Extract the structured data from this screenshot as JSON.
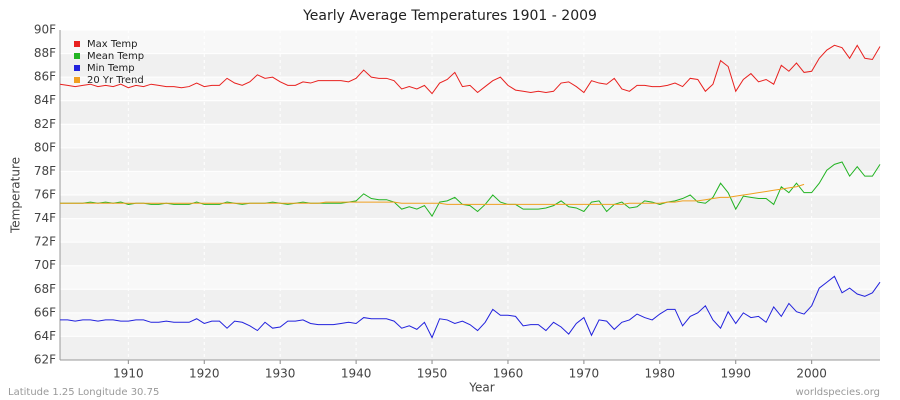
{
  "chart_data": {
    "type": "line",
    "title": "Yearly Average Temperatures 1901 - 2009",
    "x_label": "Year",
    "y_label": "Temperature",
    "footer_left": "Latitude 1.25 Longitude 30.75",
    "footer_right": "worldspecies.org",
    "legend": "top-left",
    "grid": true,
    "xlim": [
      1901,
      2009
    ],
    "xticks": [
      1910,
      1920,
      1930,
      1940,
      1950,
      1960,
      1970,
      1980,
      1990,
      2000
    ],
    "ylim": [
      62,
      90
    ],
    "yticks": [
      {
        "value": 62,
        "label": "62F"
      },
      {
        "value": 64,
        "label": "64F"
      },
      {
        "value": 66,
        "label": "66F"
      },
      {
        "value": 68,
        "label": "68F"
      },
      {
        "value": 70,
        "label": "70F"
      },
      {
        "value": 72,
        "label": "72F"
      },
      {
        "value": 74,
        "label": "74F"
      },
      {
        "value": 76,
        "label": "76F"
      },
      {
        "value": 78,
        "label": "78F"
      },
      {
        "value": 80,
        "label": "80F"
      },
      {
        "value": 82,
        "label": "82F"
      },
      {
        "value": 84,
        "label": "84F"
      },
      {
        "value": 86,
        "label": "86F"
      },
      {
        "value": 88,
        "label": "88F"
      },
      {
        "value": 90,
        "label": "90F"
      }
    ],
    "x": [
      1901,
      1902,
      1903,
      1904,
      1905,
      1906,
      1907,
      1908,
      1909,
      1910,
      1911,
      1912,
      1913,
      1914,
      1915,
      1916,
      1917,
      1918,
      1919,
      1920,
      1921,
      1922,
      1923,
      1924,
      1925,
      1926,
      1927,
      1928,
      1929,
      1930,
      1931,
      1932,
      1933,
      1934,
      1935,
      1936,
      1937,
      1938,
      1939,
      1940,
      1941,
      1942,
      1943,
      1944,
      1945,
      1946,
      1947,
      1948,
      1949,
      1950,
      1951,
      1952,
      1953,
      1954,
      1955,
      1956,
      1957,
      1958,
      1959,
      1960,
      1961,
      1962,
      1963,
      1964,
      1965,
      1966,
      1967,
      1968,
      1969,
      1970,
      1971,
      1972,
      1973,
      1974,
      1975,
      1976,
      1977,
      1978,
      1979,
      1980,
      1981,
      1982,
      1983,
      1984,
      1985,
      1986,
      1987,
      1988,
      1989,
      1990,
      1991,
      1992,
      1993,
      1994,
      1995,
      1996,
      1997,
      1998,
      1999,
      2000,
      2001,
      2002,
      2003,
      2004,
      2005,
      2006,
      2007,
      2008,
      2009
    ],
    "series": [
      {
        "name": "Max Temp",
        "color": "#e8211f",
        "values": [
          85.4,
          85.3,
          85.2,
          85.3,
          85.4,
          85.2,
          85.3,
          85.2,
          85.4,
          85.1,
          85.3,
          85.2,
          85.4,
          85.3,
          85.2,
          85.2,
          85.1,
          85.2,
          85.5,
          85.2,
          85.3,
          85.3,
          85.9,
          85.5,
          85.3,
          85.6,
          86.2,
          85.9,
          86.0,
          85.6,
          85.3,
          85.3,
          85.6,
          85.5,
          85.7,
          85.7,
          85.7,
          85.7,
          85.6,
          85.9,
          86.6,
          86.0,
          85.9,
          85.9,
          85.7,
          85.0,
          85.2,
          85.0,
          85.3,
          84.6,
          85.5,
          85.8,
          86.4,
          85.2,
          85.3,
          84.7,
          85.2,
          85.7,
          86.0,
          85.3,
          84.9,
          84.8,
          84.7,
          84.8,
          84.7,
          84.8,
          85.5,
          85.6,
          85.2,
          84.7,
          85.7,
          85.5,
          85.4,
          85.9,
          85.0,
          84.8,
          85.3,
          85.3,
          85.2,
          85.2,
          85.3,
          85.5,
          85.2,
          85.9,
          85.8,
          84.8,
          85.4,
          87.4,
          86.9,
          84.8,
          85.8,
          86.3,
          85.6,
          85.8,
          85.4,
          87.0,
          86.5,
          87.2,
          86.4,
          86.5,
          87.6,
          88.3,
          88.7,
          88.5,
          87.6,
          88.7,
          87.6,
          87.5,
          88.6
        ]
      },
      {
        "name": "Mean Temp",
        "color": "#22b322",
        "values": [
          75.3,
          75.3,
          75.3,
          75.3,
          75.4,
          75.3,
          75.4,
          75.3,
          75.4,
          75.2,
          75.3,
          75.3,
          75.2,
          75.2,
          75.3,
          75.2,
          75.2,
          75.2,
          75.4,
          75.2,
          75.2,
          75.2,
          75.4,
          75.3,
          75.2,
          75.3,
          75.3,
          75.3,
          75.4,
          75.3,
          75.2,
          75.3,
          75.4,
          75.3,
          75.3,
          75.3,
          75.3,
          75.3,
          75.4,
          75.5,
          76.1,
          75.7,
          75.6,
          75.6,
          75.4,
          74.8,
          75.0,
          74.8,
          75.1,
          74.2,
          75.4,
          75.5,
          75.8,
          75.2,
          75.1,
          74.6,
          75.2,
          76.0,
          75.4,
          75.2,
          75.2,
          74.8,
          74.8,
          74.8,
          74.9,
          75.1,
          75.5,
          75.0,
          74.9,
          74.6,
          75.4,
          75.5,
          74.6,
          75.2,
          75.4,
          74.9,
          75.0,
          75.5,
          75.4,
          75.2,
          75.4,
          75.5,
          75.7,
          76.0,
          75.4,
          75.3,
          75.8,
          77.0,
          76.2,
          74.8,
          75.9,
          75.8,
          75.7,
          75.7,
          75.2,
          76.7,
          76.2,
          77.0,
          76.2,
          76.2,
          77.0,
          78.1,
          78.6,
          78.8,
          77.6,
          78.4,
          77.6,
          77.6,
          78.6
        ]
      },
      {
        "name": "Min Temp",
        "color": "#2222dd",
        "values": [
          65.4,
          65.4,
          65.3,
          65.4,
          65.4,
          65.3,
          65.4,
          65.4,
          65.3,
          65.3,
          65.4,
          65.4,
          65.2,
          65.2,
          65.3,
          65.2,
          65.2,
          65.2,
          65.5,
          65.1,
          65.3,
          65.3,
          64.7,
          65.3,
          65.2,
          64.9,
          64.5,
          65.2,
          64.7,
          64.8,
          65.3,
          65.3,
          65.4,
          65.1,
          65.0,
          65.0,
          65.0,
          65.1,
          65.2,
          65.1,
          65.6,
          65.5,
          65.5,
          65.5,
          65.3,
          64.7,
          64.9,
          64.6,
          65.2,
          63.9,
          65.5,
          65.4,
          65.1,
          65.3,
          65.0,
          64.5,
          65.2,
          66.3,
          65.8,
          65.8,
          65.7,
          64.9,
          65.0,
          65.0,
          64.5,
          65.2,
          64.8,
          64.2,
          65.1,
          65.6,
          64.1,
          65.4,
          65.3,
          64.6,
          65.2,
          65.4,
          65.9,
          65.6,
          65.4,
          65.9,
          66.3,
          66.3,
          64.9,
          65.7,
          66.0,
          66.6,
          65.4,
          64.7,
          66.1,
          65.1,
          66.0,
          65.6,
          65.7,
          65.2,
          66.5,
          65.7,
          66.8,
          66.1,
          65.9,
          66.6,
          68.1,
          68.6,
          69.1,
          67.7,
          68.1,
          67.6,
          67.4,
          67.7,
          68.6
        ]
      },
      {
        "name": "20 Yr Trend",
        "color": "#f0a020",
        "values": [
          75.3,
          75.3,
          75.3,
          75.3,
          75.3,
          75.3,
          75.3,
          75.3,
          75.3,
          75.3,
          75.3,
          75.3,
          75.3,
          75.3,
          75.3,
          75.3,
          75.3,
          75.3,
          75.3,
          75.3,
          75.3,
          75.3,
          75.3,
          75.3,
          75.3,
          75.3,
          75.3,
          75.3,
          75.3,
          75.3,
          75.3,
          75.3,
          75.3,
          75.3,
          75.3,
          75.4,
          75.4,
          75.4,
          75.4,
          75.4,
          75.4,
          75.4,
          75.4,
          75.4,
          75.4,
          75.3,
          75.3,
          75.3,
          75.3,
          75.3,
          75.3,
          75.2,
          75.2,
          75.2,
          75.2,
          75.2,
          75.2,
          75.2,
          75.2,
          75.2,
          75.2,
          75.2,
          75.2,
          75.2,
          75.2,
          75.2,
          75.2,
          75.2,
          75.2,
          75.2,
          75.2,
          75.2,
          75.2,
          75.2,
          75.2,
          75.3,
          75.3,
          75.3,
          75.3,
          75.3,
          75.4,
          75.4,
          75.5,
          75.5,
          75.5,
          75.6,
          75.7,
          75.8,
          75.8,
          75.9,
          76.0,
          76.1,
          76.2,
          76.3,
          76.4,
          76.5,
          76.6,
          76.7,
          76.9,
          null,
          null,
          null,
          null,
          null,
          null,
          null,
          null,
          null,
          null
        ]
      }
    ]
  }
}
